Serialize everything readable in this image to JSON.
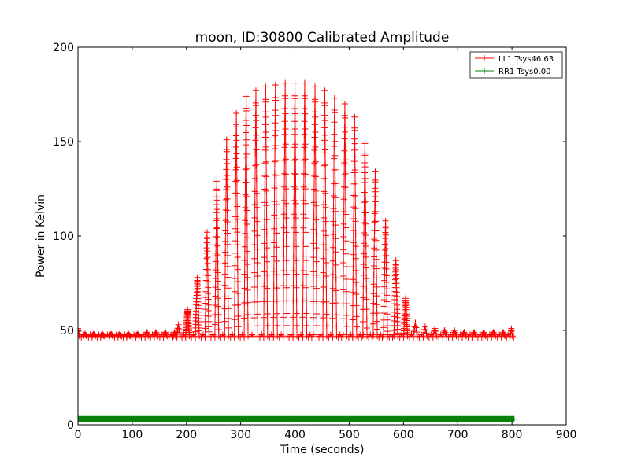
{
  "chart_data": {
    "type": "line",
    "title": "moon, ID:30800 Calibrated Amplitude",
    "xlabel": "Time (seconds)",
    "ylabel": "Power in Kelvin",
    "xlim": [
      0,
      900
    ],
    "ylim": [
      0,
      200
    ],
    "x_ticks": [
      0,
      100,
      200,
      300,
      400,
      500,
      600,
      700,
      800,
      900
    ],
    "y_ticks": [
      0,
      50,
      100,
      150,
      200
    ],
    "grid": false,
    "legend_position": "top-right",
    "marker": "+",
    "series": [
      {
        "name": "LL1 Tsys46.63",
        "color": "#ff0000",
        "baseline": 47,
        "sweep_peaks": [
          {
            "x": 0,
            "y": 51
          },
          {
            "x": 13,
            "y": 48
          },
          {
            "x": 29,
            "y": 48
          },
          {
            "x": 45,
            "y": 48
          },
          {
            "x": 61,
            "y": 48
          },
          {
            "x": 77,
            "y": 48
          },
          {
            "x": 93,
            "y": 48
          },
          {
            "x": 110,
            "y": 48
          },
          {
            "x": 127,
            "y": 49
          },
          {
            "x": 144,
            "y": 49
          },
          {
            "x": 161,
            "y": 49
          },
          {
            "x": 178,
            "y": 49
          },
          {
            "x": 185,
            "y": 53
          },
          {
            "x": 202,
            "y": 61
          },
          {
            "x": 220,
            "y": 78
          },
          {
            "x": 238,
            "y": 102
          },
          {
            "x": 256,
            "y": 129
          },
          {
            "x": 274,
            "y": 151
          },
          {
            "x": 292,
            "y": 165
          },
          {
            "x": 310,
            "y": 174
          },
          {
            "x": 328,
            "y": 177
          },
          {
            "x": 346,
            "y": 179
          },
          {
            "x": 364,
            "y": 180
          },
          {
            "x": 382,
            "y": 181
          },
          {
            "x": 400,
            "y": 181
          },
          {
            "x": 418,
            "y": 181
          },
          {
            "x": 437,
            "y": 179
          },
          {
            "x": 455,
            "y": 177
          },
          {
            "x": 473,
            "y": 173
          },
          {
            "x": 492,
            "y": 170
          },
          {
            "x": 510,
            "y": 163
          },
          {
            "x": 529,
            "y": 149
          },
          {
            "x": 548,
            "y": 134
          },
          {
            "x": 567,
            "y": 108
          },
          {
            "x": 586,
            "y": 87
          },
          {
            "x": 604,
            "y": 67
          },
          {
            "x": 622,
            "y": 54
          },
          {
            "x": 640,
            "y": 52
          },
          {
            "x": 658,
            "y": 51
          },
          {
            "x": 676,
            "y": 50
          },
          {
            "x": 694,
            "y": 50
          },
          {
            "x": 712,
            "y": 49
          },
          {
            "x": 730,
            "y": 49
          },
          {
            "x": 748,
            "y": 49
          },
          {
            "x": 766,
            "y": 49
          },
          {
            "x": 784,
            "y": 49
          },
          {
            "x": 799,
            "y": 51
          }
        ],
        "x_end": 805
      },
      {
        "name": "RR1 Tsys0.00",
        "color": "#008000",
        "constant_value": 3,
        "x_start": 0,
        "x_end": 805
      }
    ]
  }
}
